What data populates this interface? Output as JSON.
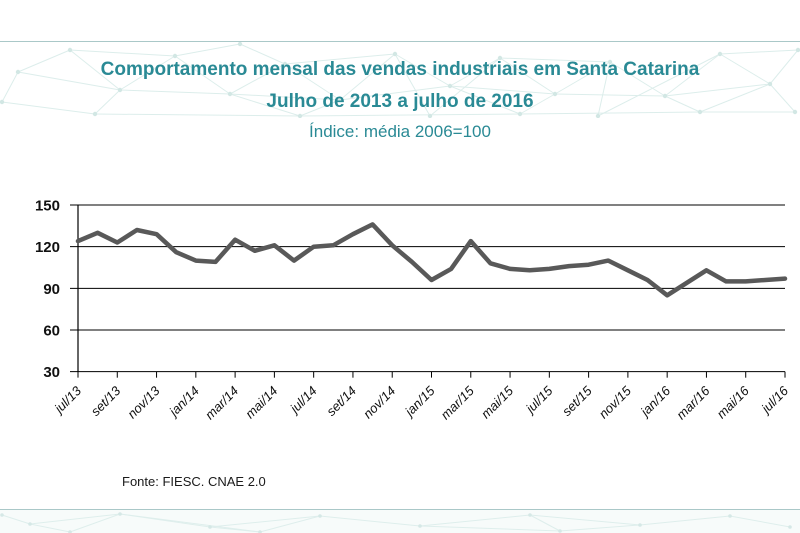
{
  "colors": {
    "title_teal": "#2a8a95",
    "line_gray": "#595959",
    "axis_black": "#111111",
    "pattern_teal": "#d7ebe8",
    "divider": "#aac8c8"
  },
  "chart_data": {
    "type": "line",
    "title": "Comportamento mensal das vendas industriais em Santa Catarina",
    "subtitle": "Julho de 2013 a julho de 2016",
    "index_note": "Índice: média 2006=100",
    "x": [
      "jul/13",
      "ago/13",
      "set/13",
      "out/13",
      "nov/13",
      "dez/13",
      "jan/14",
      "fev/14",
      "mar/14",
      "abr/14",
      "mai/14",
      "jun/14",
      "jul/14",
      "ago/14",
      "set/14",
      "out/14",
      "nov/14",
      "dez/14",
      "jan/15",
      "fev/15",
      "mar/15",
      "abr/15",
      "mai/15",
      "jun/15",
      "jul/15",
      "ago/15",
      "set/15",
      "out/15",
      "nov/15",
      "dez/15",
      "jan/16",
      "fev/16",
      "mar/16",
      "abr/16",
      "mai/16",
      "jun/16",
      "jul/16"
    ],
    "values": [
      124,
      130,
      123,
      132,
      129,
      116,
      110,
      109,
      125,
      117,
      121,
      110,
      120,
      121,
      129,
      136,
      121,
      109,
      96,
      104,
      124,
      108,
      104,
      103,
      104,
      106,
      107,
      110,
      103,
      96,
      85,
      94,
      103,
      95,
      95,
      96,
      97
    ],
    "xtick_step": 2,
    "xlabel": "",
    "ylabel": "",
    "ylim": [
      30,
      150
    ],
    "yticks": [
      150,
      120,
      90,
      60,
      30
    ],
    "grid": "horizontal",
    "legend": "none",
    "line_color": "#595959",
    "source": "Fonte: FIESC. CNAE 2.0"
  }
}
